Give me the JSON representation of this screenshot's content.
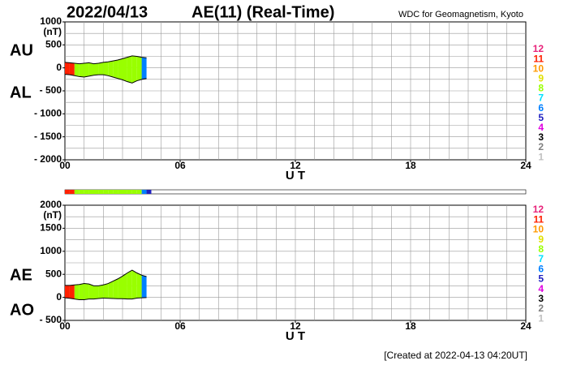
{
  "header": {
    "date": "2022/04/13",
    "title": "AE(11) (Real-Time)",
    "source": "WDC for Geomagnetism, Kyoto"
  },
  "footer": "[Created at 2022-04-13 04:20UT]",
  "stations": {
    "levels": [
      12,
      11,
      10,
      9,
      8,
      7,
      6,
      5,
      4,
      3,
      2,
      1
    ],
    "colors": [
      "#e8237a",
      "#ff2000",
      "#ff9900",
      "#e0e000",
      "#99ff00",
      "#00e0ff",
      "#0080ff",
      "#2020c0",
      "#e000e0",
      "#000000",
      "#808080",
      "#c0c0c0"
    ],
    "x": [
      0,
      0.25,
      0.5,
      0.75,
      1,
      1.25,
      1.5,
      1.75,
      2,
      2.25,
      2.5,
      2.75,
      3,
      3.25,
      3.5,
      3.75,
      4,
      4.25
    ],
    "values": [
      11,
      11,
      8,
      8,
      8,
      8,
      8,
      8,
      8,
      8,
      8,
      8,
      8,
      8,
      8,
      8,
      6,
      5
    ]
  },
  "chart_data": [
    {
      "type": "area",
      "y_unit": "(nT)",
      "xlabel": "U T",
      "x": [
        0,
        0.25,
        0.5,
        0.75,
        1,
        1.25,
        1.5,
        1.75,
        2,
        2.25,
        2.5,
        2.75,
        3,
        3.25,
        3.5,
        3.75,
        4,
        4.25
      ],
      "series": [
        {
          "name": "AU",
          "color": "#000000",
          "values": [
            120,
            110,
            100,
            90,
            100,
            110,
            90,
            100,
            120,
            130,
            150,
            170,
            200,
            230,
            260,
            250,
            230,
            220
          ]
        },
        {
          "name": "AL",
          "color": "#000000",
          "values": [
            -140,
            -150,
            -170,
            -190,
            -200,
            -180,
            -160,
            -150,
            -150,
            -170,
            -200,
            -230,
            -260,
            -300,
            -330,
            -280,
            -250,
            -230
          ]
        }
      ],
      "xlim": [
        0,
        24
      ],
      "xticks": [
        {
          "value": 0,
          "label": "00"
        },
        {
          "value": 6,
          "label": "06"
        },
        12,
        18,
        24
      ],
      "ylim": [
        -2000,
        1000
      ],
      "yticks": [
        1000,
        500,
        0,
        {
          "value": -500,
          "label": "- 500"
        },
        {
          "value": -1000,
          "label": "- 1000"
        },
        {
          "value": -1500,
          "label": "- 1500"
        },
        {
          "value": -2000,
          "label": "- 2000"
        }
      ],
      "xgrid_step": 1,
      "ygrid_step": 250
    },
    {
      "type": "area",
      "y_unit": "(nT)",
      "xlabel": "U T",
      "x": [
        0,
        0.25,
        0.5,
        0.75,
        1,
        1.25,
        1.5,
        1.75,
        2,
        2.25,
        2.5,
        2.75,
        3,
        3.25,
        3.5,
        3.75,
        4,
        4.25
      ],
      "series": [
        {
          "name": "AE",
          "color": "#000000",
          "values": [
            260,
            260,
            270,
            280,
            300,
            290,
            250,
            250,
            270,
            300,
            350,
            400,
            460,
            530,
            590,
            530,
            480,
            450
          ]
        },
        {
          "name": "AO",
          "color": "#000000",
          "values": [
            -10,
            -20,
            -35,
            -50,
            -50,
            -35,
            -35,
            -25,
            -15,
            -20,
            -25,
            -30,
            -30,
            -35,
            -35,
            -15,
            -10,
            -5
          ]
        }
      ],
      "xlim": [
        0,
        24
      ],
      "xticks": [
        {
          "value": 0,
          "label": "00"
        },
        {
          "value": 6,
          "label": "06"
        },
        12,
        18,
        24
      ],
      "ylim": [
        -500,
        2000
      ],
      "yticks": [
        2000,
        1500,
        1000,
        500,
        0,
        {
          "value": -500,
          "label": "- 500"
        }
      ],
      "xgrid_step": 1,
      "ygrid_step": 250
    }
  ]
}
